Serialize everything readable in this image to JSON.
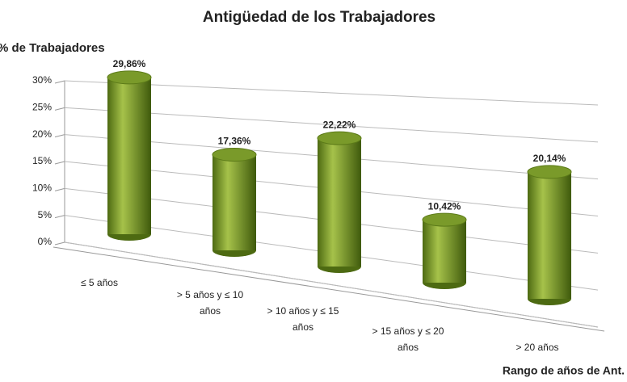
{
  "chart_data": {
    "type": "bar",
    "title": "Antigüedad de los Trabajadores",
    "y_label": "% de Trabajadores",
    "x_label": "Rango de años de Ant.",
    "categories": [
      "≤ 5 años",
      "> 5 años y ≤ 10 años",
      "> 10 años y ≤ 15 años",
      "> 15 años y ≤ 20 años",
      "> 20 años"
    ],
    "values": [
      29.86,
      17.36,
      22.22,
      10.42,
      20.14
    ],
    "value_labels": [
      "29,86%",
      "17,36%",
      "22,22%",
      "10,42%",
      "20,14%"
    ],
    "color": "#7a9a2a",
    "ylim": [
      0,
      30
    ],
    "yticks": [
      {
        "value": 0,
        "label": "0%"
      },
      {
        "value": 5,
        "label": "5%"
      },
      {
        "value": 10,
        "label": "10%"
      },
      {
        "value": 15,
        "label": "15%"
      },
      {
        "value": 20,
        "label": "20%"
      },
      {
        "value": 25,
        "label": "25%"
      },
      {
        "value": 30,
        "label": "30%"
      }
    ],
    "grid": true
  }
}
